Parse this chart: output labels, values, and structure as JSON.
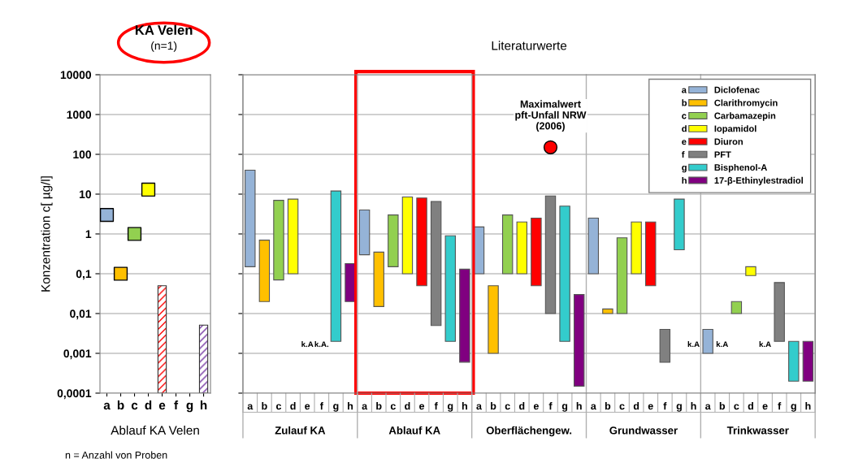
{
  "chart_data": [
    {
      "type": "scatter",
      "title": "KA Velen",
      "subtitle": "(n=1)",
      "xlabel": "Ablauf KA Velen",
      "ylabel": "Konzentration c[ µg/l]",
      "log": "y",
      "grid": "y",
      "marker": "square",
      "categories": [
        "a",
        "b",
        "c",
        "d",
        "e",
        "f",
        "g",
        "h"
      ],
      "ylim": [
        0.0001,
        10000
      ],
      "yticks": [
        {
          "value": 0.0001,
          "label": "0,0001"
        },
        {
          "value": 0.001,
          "label": "0,001"
        },
        {
          "value": 0.01,
          "label": "0,01"
        },
        {
          "value": 0.1,
          "label": "0,1"
        },
        1,
        10,
        100,
        1000,
        10000
      ],
      "series": [
        {
          "values": [
            3,
            0.1,
            1,
            13,
            null,
            null,
            null,
            null
          ],
          "colors": [
            "#95b3d7",
            "#ffc000",
            "#92d050",
            "#ffff00",
            null,
            null,
            null,
            null
          ]
        },
        {
          "type": "bar",
          "values": [
            null,
            null,
            null,
            null,
            0.05,
            null,
            null,
            0.005
          ],
          "colors": [
            null,
            null,
            null,
            null,
            "#ff0000",
            null,
            null,
            "#7030a0"
          ]
        }
      ],
      "annotations": [
        "n = Anzahl von Proben"
      ]
    },
    {
      "type": "bar",
      "title": "Literaturwerte",
      "log": "y",
      "grid": "y",
      "legend": "top right",
      "tick_labels": "x",
      "categories": [
        "a",
        "b",
        "c",
        "d",
        "e",
        "f",
        "g",
        "h",
        "a",
        "b",
        "c",
        "d",
        "e",
        "f",
        "g",
        "h",
        "a",
        "b",
        "c",
        "d",
        "e",
        "f",
        "g",
        "h",
        "a",
        "b",
        "c",
        "d",
        "e",
        "f",
        "g",
        "h",
        "a",
        "b",
        "c",
        "d",
        "e",
        "f",
        "g",
        "h"
      ],
      "ylim": [
        0.0001,
        10000
      ],
      "yticks": [
        0.0001,
        0.001,
        0.01,
        0.1,
        1,
        10,
        100,
        1000,
        10000
      ],
      "series": [
        {
          "type": "bar",
          "name": "Diclofenac",
          "color": "#95b3d7",
          "base": [
            0.15,
            null,
            null,
            null,
            null,
            null,
            null,
            null,
            0.3,
            null,
            null,
            null,
            null,
            null,
            null,
            null,
            0.1,
            null,
            null,
            null,
            null,
            null,
            null,
            null,
            0.1,
            null,
            null,
            null,
            null,
            null,
            null,
            null,
            0.001,
            null,
            null,
            null,
            null,
            null,
            null,
            null
          ],
          "values": [
            39.85,
            null,
            null,
            null,
            null,
            null,
            null,
            null,
            3.7,
            null,
            null,
            null,
            null,
            null,
            null,
            null,
            1.4,
            null,
            null,
            null,
            null,
            null,
            null,
            null,
            2.4,
            null,
            null,
            null,
            null,
            null,
            null,
            null,
            0.003,
            null,
            null,
            null,
            null,
            null,
            null,
            null
          ]
        },
        {
          "type": "bar",
          "name": "Clarithromycin",
          "color": "#ffc000",
          "base": [
            null,
            0.02,
            null,
            null,
            null,
            null,
            null,
            null,
            null,
            0.015,
            null,
            null,
            null,
            null,
            null,
            null,
            null,
            0.001,
            null,
            null,
            null,
            null,
            null,
            null,
            null,
            0.01,
            null,
            null,
            null,
            null,
            null,
            null,
            null,
            null,
            null,
            null,
            null,
            null,
            null,
            null
          ],
          "values": [
            null,
            0.68,
            null,
            null,
            null,
            null,
            null,
            null,
            null,
            0.335,
            null,
            null,
            null,
            null,
            null,
            null,
            null,
            0.049,
            null,
            null,
            null,
            null,
            null,
            null,
            null,
            0.003,
            null,
            null,
            null,
            null,
            null,
            null,
            null,
            null,
            null,
            null,
            null,
            null,
            null,
            null
          ],
          "value_labels": [
            null,
            null,
            null,
            null,
            null,
            null,
            null,
            null,
            null,
            null,
            null,
            null,
            null,
            null,
            null,
            null,
            null,
            null,
            null,
            null,
            null,
            null,
            null,
            null,
            null,
            null,
            null,
            null,
            null,
            null,
            null,
            null,
            null,
            "k.A",
            null,
            null,
            null,
            null,
            null,
            null
          ]
        },
        {
          "type": "bar",
          "name": "Carbamazepin",
          "color": "#92d050",
          "base": [
            null,
            null,
            0.07,
            null,
            null,
            null,
            null,
            null,
            null,
            null,
            0.15,
            null,
            null,
            null,
            null,
            null,
            null,
            null,
            0.1,
            null,
            null,
            null,
            null,
            null,
            null,
            null,
            0.01,
            null,
            null,
            null,
            null,
            null,
            null,
            null,
            0.01,
            null,
            null,
            null,
            null,
            null
          ],
          "values": [
            null,
            null,
            6.93,
            null,
            null,
            null,
            null,
            null,
            null,
            null,
            2.85,
            null,
            null,
            null,
            null,
            null,
            null,
            null,
            2.9,
            null,
            null,
            null,
            null,
            null,
            null,
            null,
            0.79,
            null,
            null,
            null,
            null,
            null,
            null,
            null,
            0.01,
            null,
            null,
            null,
            null,
            null
          ]
        },
        {
          "type": "bar",
          "name": "Iopamidol",
          "color": "#ffff00",
          "base": [
            null,
            null,
            null,
            0.1,
            null,
            null,
            null,
            null,
            null,
            null,
            null,
            0.1,
            null,
            null,
            null,
            null,
            null,
            null,
            null,
            0.1,
            null,
            null,
            null,
            null,
            null,
            null,
            null,
            0.1,
            null,
            null,
            null,
            null,
            null,
            null,
            null,
            0.09,
            null,
            null,
            null,
            null
          ],
          "values": [
            null,
            null,
            null,
            7.4,
            null,
            null,
            null,
            null,
            null,
            null,
            null,
            8.4,
            null,
            null,
            null,
            null,
            null,
            null,
            null,
            1.9,
            null,
            null,
            null,
            null,
            null,
            null,
            null,
            1.9,
            null,
            null,
            null,
            null,
            null,
            null,
            null,
            0.06,
            null,
            null,
            null,
            null
          ]
        },
        {
          "type": "bar",
          "name": "Diuron",
          "color": "#ff0000",
          "base": [
            null,
            null,
            null,
            null,
            null,
            null,
            null,
            null,
            null,
            null,
            null,
            null,
            0.05,
            null,
            null,
            null,
            null,
            null,
            null,
            null,
            0.05,
            null,
            null,
            null,
            null,
            null,
            null,
            null,
            0.05,
            null,
            null,
            null,
            null,
            null,
            null,
            null,
            null,
            null,
            null,
            null
          ],
          "values": [
            null,
            null,
            null,
            null,
            null,
            null,
            null,
            null,
            null,
            null,
            null,
            null,
            7.95,
            null,
            null,
            null,
            null,
            null,
            null,
            null,
            2.45,
            null,
            null,
            null,
            null,
            null,
            null,
            null,
            1.95,
            null,
            null,
            null,
            null,
            null,
            null,
            null,
            null,
            null,
            null,
            null
          ],
          "value_labels": [
            null,
            null,
            null,
            null,
            "k.A",
            null,
            null,
            null,
            null,
            null,
            null,
            null,
            null,
            null,
            null,
            null,
            null,
            null,
            null,
            null,
            null,
            null,
            null,
            null,
            null,
            null,
            null,
            null,
            null,
            null,
            null,
            null,
            null,
            null,
            null,
            null,
            "k.A",
            null,
            null,
            null
          ]
        },
        {
          "type": "bar",
          "name": "PFT",
          "color": "#808080",
          "base": [
            null,
            null,
            null,
            null,
            null,
            null,
            null,
            null,
            null,
            null,
            null,
            null,
            null,
            0.005,
            null,
            null,
            null,
            null,
            null,
            null,
            null,
            0.01,
            null,
            null,
            null,
            null,
            null,
            null,
            null,
            0.0006,
            null,
            null,
            null,
            null,
            null,
            null,
            null,
            0.002,
            null,
            null
          ],
          "values": [
            null,
            null,
            null,
            null,
            null,
            null,
            null,
            null,
            null,
            null,
            null,
            null,
            null,
            6.495,
            null,
            null,
            null,
            null,
            null,
            null,
            null,
            8.99,
            null,
            null,
            null,
            null,
            null,
            null,
            null,
            0.0034,
            null,
            null,
            null,
            null,
            null,
            null,
            null,
            0.058,
            null,
            null
          ],
          "value_labels": [
            null,
            null,
            null,
            null,
            null,
            "k.A.",
            null,
            null,
            null,
            null,
            null,
            null,
            null,
            null,
            null,
            null,
            null,
            null,
            null,
            null,
            null,
            null,
            null,
            null,
            null,
            null,
            null,
            null,
            null,
            null,
            null,
            null,
            null,
            null,
            null,
            null,
            null,
            null,
            null,
            null
          ]
        },
        {
          "type": "bar",
          "name": "Bisphenol-A",
          "color": "#33cccc",
          "base": [
            null,
            null,
            null,
            null,
            null,
            null,
            0.002,
            null,
            null,
            null,
            null,
            null,
            null,
            null,
            0.002,
            null,
            null,
            null,
            null,
            null,
            null,
            null,
            0.002,
            null,
            null,
            null,
            null,
            null,
            null,
            null,
            0.4,
            null,
            null,
            null,
            null,
            null,
            null,
            null,
            0.0002,
            null
          ],
          "values": [
            null,
            null,
            null,
            null,
            null,
            null,
            11.998,
            null,
            null,
            null,
            null,
            null,
            null,
            null,
            0.898,
            null,
            null,
            null,
            null,
            null,
            null,
            null,
            4.998,
            null,
            null,
            null,
            null,
            null,
            null,
            null,
            7.1,
            null,
            null,
            null,
            null,
            null,
            null,
            null,
            0.0018,
            null
          ]
        },
        {
          "type": "bar",
          "name": "17-β-Ethinylestradiol",
          "color": "#800080",
          "base": [
            null,
            null,
            null,
            null,
            null,
            null,
            null,
            0.02,
            null,
            null,
            null,
            null,
            null,
            null,
            null,
            0.0006,
            null,
            null,
            null,
            null,
            null,
            null,
            null,
            0.00015,
            null,
            null,
            null,
            null,
            null,
            null,
            null,
            null,
            null,
            null,
            null,
            null,
            null,
            null,
            null,
            0.0002
          ],
          "values": [
            null,
            null,
            null,
            null,
            null,
            null,
            null,
            0.16,
            null,
            null,
            null,
            null,
            null,
            null,
            null,
            0.1294,
            null,
            null,
            null,
            null,
            null,
            null,
            null,
            0.02985,
            null,
            null,
            null,
            null,
            null,
            null,
            null,
            null,
            null,
            null,
            null,
            null,
            null,
            null,
            null,
            0.0018
          ],
          "value_labels": [
            null,
            null,
            null,
            null,
            null,
            null,
            null,
            null,
            null,
            null,
            null,
            null,
            null,
            null,
            null,
            null,
            null,
            null,
            null,
            null,
            null,
            null,
            null,
            null,
            null,
            null,
            null,
            null,
            null,
            null,
            null,
            "k.A",
            null,
            null,
            null,
            null,
            null,
            null,
            null,
            null
          ]
        },
        {
          "type": "scatter",
          "color": "#ff0000",
          "marker": "circle",
          "values": [
            null,
            null,
            null,
            null,
            null,
            null,
            null,
            null,
            null,
            null,
            null,
            null,
            null,
            null,
            null,
            null,
            null,
            null,
            null,
            null,
            null,
            150,
            null,
            null,
            null,
            null,
            null,
            null,
            null,
            null,
            null,
            null,
            null,
            null,
            null,
            null,
            null,
            null,
            null,
            null
          ]
        }
      ],
      "annotations": [
        "Zulauf KA",
        "Ablauf KA",
        "Oberflächengew.",
        "Grundwasser",
        "Trinkwasser",
        "Maximalwert\npft-Unfall NRW\n(2006)"
      ]
    }
  ]
}
